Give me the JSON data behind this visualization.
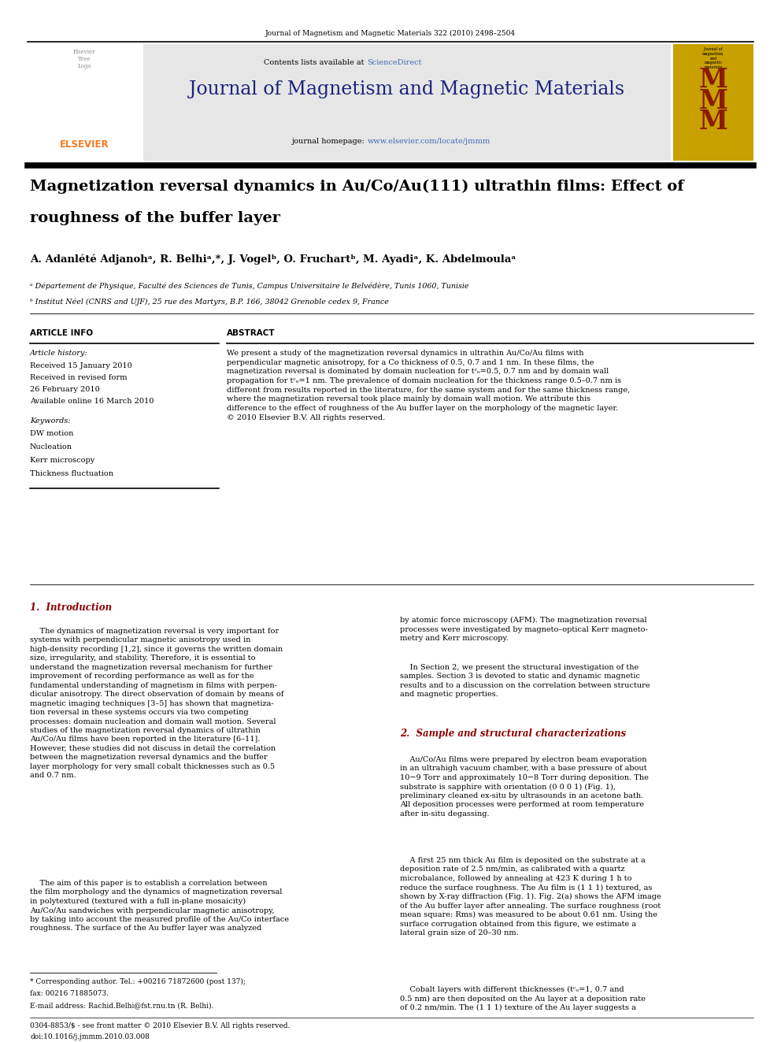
{
  "page_width": 9.92,
  "page_height": 13.23,
  "bg_color": "#ffffff",
  "journal_ref": "Journal of Magnetism and Magnetic Materials 322 (2010) 2498–2504",
  "sciencedirect_text": "Contents lists available at ",
  "sciencedirect_link": "ScienceDirect",
  "journal_title": "Journal of Magnetism and Magnetic Materials",
  "journal_homepage_prefix": "journal homepage: ",
  "journal_homepage_link": "www.elsevier.com/locate/jmmm",
  "paper_title_line1": "Magnetization reversal dynamics in Au/Co/Au(111) ultrathin films: Effect of",
  "paper_title_line2": "roughness of the buffer layer",
  "authors_line": "A. Adanlété Adjanohᵃ, R. Belhiᵃ,*, J. Vogelᵇ, O. Fruchartᵇ, M. Ayadiᵃ, K. Abdelmoulaᵃ",
  "affil_a": "ᵃ Département de Physique, Faculté des Sciences de Tunis, Campus Universitaire le Belvédère, Tunis 1060, Tunisie",
  "affil_b": "ᵇ Institut Néel (CNRS and UJF), 25 rue des Martyrs, B.P. 166, 38042 Grenoble cedex 9, France",
  "section_article_info": "ARTICLE INFO",
  "section_abstract": "ABSTRACT",
  "article_history_label": "Article history:",
  "received1": "Received 15 January 2010",
  "received2": "Received in revised form",
  "received3": "26 February 2010",
  "available": "Available online 16 March 2010",
  "keywords_label": "Keywords:",
  "keywords": [
    "DW motion",
    "Nucleation",
    "Kerr microscopy",
    "Thickness fluctuation"
  ],
  "abstract_text": "We present a study of the magnetization reversal dynamics in ultrathin Au/Co/Au films with\nperpendicular magnetic anisotropy, for a Co thickness of 0.5, 0.7 and 1 nm. In these films, the\nmagnetization reversal is dominated by domain nucleation for tᶜₒ=0.5, 0.7 nm and by domain wall\npropagation for tᶜₒ=1 nm. The prevalence of domain nucleation for the thickness range 0.5–0.7 nm is\ndifferent from results reported in the literature, for the same system and for the same thickness range,\nwhere the magnetization reversal took place mainly by domain wall motion. We attribute this\ndifference to the effect of roughness of the Au buffer layer on the morphology of the magnetic layer.\n© 2010 Elsevier B.V. All rights reserved.",
  "intro_heading": "1.  Introduction",
  "intro_p1": "    The dynamics of magnetization reversal is very important for\nsystems with perpendicular magnetic anisotropy used in\nhigh-density recording [1,2], since it governs the written domain\nsize, irregularity, and stability. Therefore, it is essential to\nunderstand the magnetization reversal mechanism for further\nimprovement of recording performance as well as for the\nfundamental understanding of magnetism in films with perpen-\ndicular anisotropy. The direct observation of domain by means of\nmagnetic imaging techniques [3–5] has shown that magnetiza-\ntion reversal in these systems occurs via two competing\nprocesses: domain nucleation and domain wall motion. Several\nstudies of the magnetization reversal dynamics of ultrathin\nAu/Co/Au films have been reported in the literature [6–11].\nHowever, these studies did not discuss in detail the correlation\nbetween the magnetization reversal dynamics and the buffer\nlayer morphology for very small cobalt thicknesses such as 0.5\nand 0.7 nm.",
  "intro_p2": "    The aim of this paper is to establish a correlation between\nthe film morphology and the dynamics of magnetization reversal\nin polytextured (textured with a full in-plane mosaicity)\nAu/Co/Au sandwiches with perpendicular magnetic anisotropy,\nby taking into account the measured profile of the Au/Co interface\nroughness. The surface of the Au buffer layer was analyzed",
  "intro_col2_p1": "by atomic force microscopy (AFM). The magnetization reversal\nprocesses were investigated by magneto–optical Kerr magneto-\nmetry and Kerr microscopy.",
  "intro_col2_p2": "    In Section 2, we present the structural investigation of the\nsamples. Section 3 is devoted to static and dynamic magnetic\nresults and to a discussion on the correlation between structure\nand magnetic properties.",
  "section2_heading": "2.  Sample and structural characterizations",
  "section2_p1": "    Au/Co/Au films were prepared by electron beam evaporation\nin an ultrahigh vacuum chamber, with a base pressure of about\n10−9 Torr and approximately 10−8 Torr during deposition. The\nsubstrate is sapphire with orientation (0 0 0 1) (Fig. 1),\npreliminary cleaned ex-situ by ultrasounds in an acetone bath.\nAll deposition processes were performed at room temperature\nafter in-situ degassing.",
  "section2_p2": "    A first 25 nm thick Au film is deposited on the substrate at a\ndeposition rate of 2.5 nm/min, as calibrated with a quartz\nmicrobalance, followed by annealing at 423 K during 1 h to\nreduce the surface roughness. The Au film is (1 1 1) textured, as\nshown by X-ray diffraction (Fig. 1). Fig. 2(a) shows the AFM image\nof the Au buffer layer after annealing. The surface roughness (root\nmean square: Rms) was measured to be about 0.61 nm. Using the\nsurface corrugation obtained from this figure, we estimate a\nlateral grain size of 20–30 nm.",
  "section2_p3": "    Cobalt layers with different thicknesses (tᶜₒ=1, 0.7 and\n0.5 nm) are then deposited on the Au layer at a deposition rate\nof 0.2 nm/min. The (1 1 1) texture of the Au layer suggests a",
  "footnote_star": "* Corresponding author. Tel.: +00216 71872600 (post 137);",
  "footnote_fax": "fax: 00216 71885073.",
  "footnote_email": "E-mail address: Rachid.Belhi@fst.rnu.tn (R. Belhi).",
  "footer_notice": "0304-8853/$ - see front matter © 2010 Elsevier B.V. All rights reserved.",
  "footer_doi": "doi:10.1016/j.jmmm.2010.03.008",
  "elsevier_orange": "#f47920",
  "link_color": "#003399",
  "scidir_color": "#4169b8",
  "title_color": "#000000",
  "section_heading_color": "#8b0000",
  "header_gray": "#e6e6e6",
  "mmm_yellow": "#c8a000",
  "mmm_red": "#8b1a00"
}
